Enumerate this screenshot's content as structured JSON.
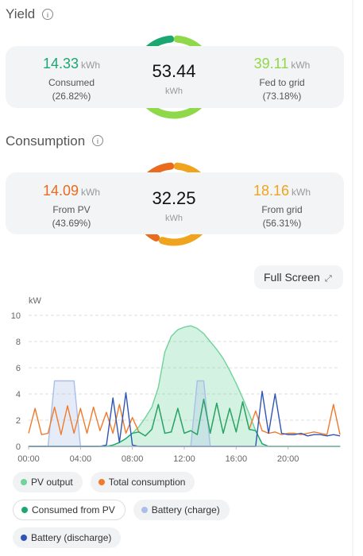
{
  "yield": {
    "title": "Yield",
    "total": 53.44,
    "unit": "kWh",
    "left": {
      "value": 14.33,
      "unit": "kWh",
      "label": "Consumed",
      "share": "(26.82%)",
      "color": "#1aa870"
    },
    "right": {
      "value": 39.11,
      "unit": "kWh",
      "label": "Fed to grid",
      "share": "(73.18%)",
      "color": "#8fd84a"
    }
  },
  "consumption": {
    "title": "Consumption",
    "total": 32.25,
    "unit": "kWh",
    "left": {
      "value": 14.09,
      "unit": "kWh",
      "label": "From PV",
      "share": "(43.69%)",
      "color": "#ea6a1e"
    },
    "right": {
      "value": 18.16,
      "unit": "kWh",
      "label": "From grid",
      "share": "(56.31%)",
      "color": "#f0a31c"
    }
  },
  "full_screen": "Full Screen",
  "chart_data": {
    "type": "line",
    "y_label": "kW",
    "xlim": [
      0,
      24
    ],
    "ylim": [
      0,
      10
    ],
    "yticks": [
      0,
      2,
      4,
      6,
      8,
      10
    ],
    "xticks": [
      {
        "value": 0,
        "label": "00:00"
      },
      {
        "value": 4,
        "label": "04:00"
      },
      {
        "value": 8,
        "label": "08:00"
      },
      {
        "value": 12,
        "label": "12:00"
      },
      {
        "value": 16,
        "label": "16:00"
      },
      {
        "value": 20,
        "label": "20:00"
      }
    ],
    "grid": true,
    "x": [
      0,
      0.5,
      1,
      1.5,
      2,
      2.5,
      3,
      3.5,
      4,
      4.5,
      5,
      5.5,
      6,
      6.5,
      7,
      7.5,
      8,
      8.5,
      9,
      9.5,
      10,
      10.5,
      11,
      11.5,
      12,
      12.5,
      13,
      13.5,
      14,
      14.5,
      15,
      15.5,
      16,
      16.5,
      17,
      17.5,
      18,
      18.5,
      19,
      19.5,
      20,
      20.5,
      21,
      21.5,
      22,
      22.5,
      23,
      23.5,
      24
    ],
    "series": [
      {
        "name": "PV output",
        "color": "#6fd39a",
        "area": true,
        "values": [
          0,
          0,
          0,
          0,
          0,
          0,
          0,
          0,
          0,
          0,
          0,
          0,
          0,
          0.1,
          0.3,
          0.6,
          1,
          1.5,
          2.2,
          3,
          4.5,
          7.2,
          8.4,
          8.9,
          9.1,
          9.2,
          9,
          8.6,
          8,
          7.4,
          6.7,
          5.8,
          4.8,
          3.7,
          2.5,
          1.2,
          0.2,
          0,
          0,
          0,
          0,
          0,
          0,
          0,
          0,
          0,
          0,
          0,
          0
        ]
      },
      {
        "name": "Total consumption",
        "color": "#f07a2a",
        "area": false,
        "values": [
          1.0,
          2.9,
          0.9,
          1.0,
          3.0,
          0.9,
          3.1,
          1.0,
          2.9,
          1.0,
          3.0,
          1.2,
          2.6,
          1.0,
          3.2,
          1.0,
          2.2,
          1.1,
          0.8,
          1.3,
          3.2,
          1.0,
          1.1,
          2.9,
          1.0,
          1.2,
          0.9,
          3.6,
          1.0,
          3.3,
          1.0,
          2.9,
          1.1,
          3.4,
          1.3,
          2.7,
          1.2,
          1.0,
          1.1,
          0.9,
          1.0,
          1.0,
          0.9,
          1.0,
          1.1,
          1.0,
          0.9,
          3.2,
          0.9
        ]
      },
      {
        "name": "Consumed from PV",
        "color": "#1aa870",
        "area": false,
        "values": [
          0,
          0,
          0,
          0,
          0,
          0,
          0,
          0,
          0,
          0,
          0,
          0,
          0,
          0.1,
          0.3,
          0.6,
          1,
          1.1,
          0.8,
          1.3,
          3.2,
          1.0,
          1.1,
          2.9,
          1.0,
          1.2,
          0.9,
          3.6,
          1.0,
          3.3,
          1.0,
          2.9,
          1.1,
          3.4,
          1.3,
          1.2,
          0.2,
          0,
          0,
          0,
          0,
          0,
          0,
          0,
          0,
          0,
          0,
          0,
          0
        ]
      },
      {
        "name": "Battery (charge)",
        "color": "#a9bfe8",
        "area": true,
        "values": [
          0,
          0,
          0,
          0,
          5,
          5,
          5,
          5,
          0,
          0,
          0,
          0,
          0,
          0,
          0,
          0,
          0,
          0,
          0,
          0,
          0,
          0,
          0,
          0,
          0,
          0,
          5,
          5,
          0,
          0,
          0,
          0,
          0,
          0,
          0,
          0,
          0,
          0,
          0,
          0,
          0,
          0,
          0,
          0,
          0,
          0,
          0,
          0,
          0
        ]
      },
      {
        "name": "Battery (discharge)",
        "color": "#2f55b8",
        "area": false,
        "values": [
          0,
          0,
          0,
          0,
          0,
          0,
          0,
          0,
          0,
          0,
          0,
          0,
          0.1,
          3.7,
          0.3,
          4.1,
          0.1,
          0,
          0,
          0,
          0,
          0,
          0,
          0,
          0,
          0,
          0,
          0,
          0,
          0,
          0,
          0,
          0,
          0,
          0,
          0,
          4.2,
          1.0,
          4.0,
          1.0,
          0.9,
          0.9,
          1.0,
          0.8,
          0.9,
          0.9,
          0.8,
          0.9,
          0.8
        ]
      }
    ]
  }
}
